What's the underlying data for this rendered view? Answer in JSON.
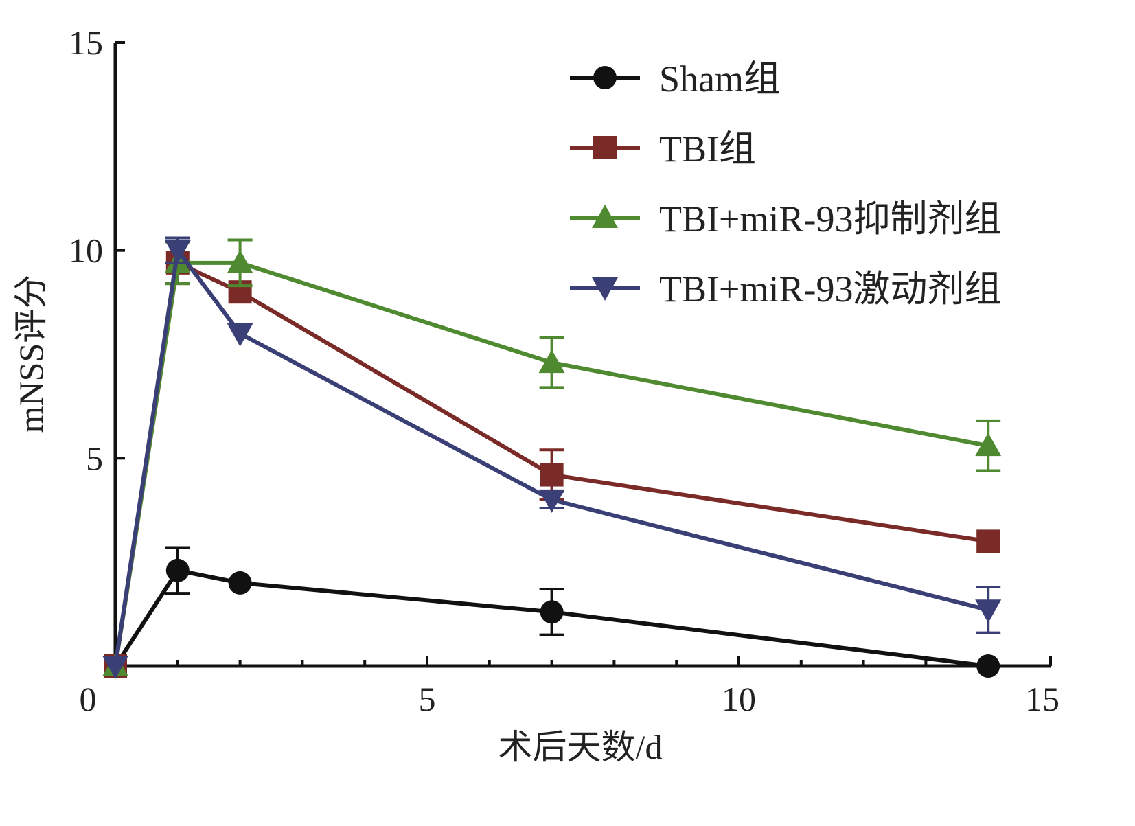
{
  "chart_data": {
    "type": "line",
    "title": "",
    "xlabel": "术后天数/d",
    "ylabel": "mNSS评分",
    "xlim": [
      0,
      15
    ],
    "ylim": [
      0,
      15
    ],
    "xticks": [
      "0",
      "5",
      "10",
      "15"
    ],
    "yticks": [
      "5",
      "10",
      "15"
    ],
    "x": [
      0,
      1,
      2,
      7,
      14
    ],
    "legend_position": "top-right",
    "series": [
      {
        "name": "Sham组",
        "color": "#111111",
        "marker": "circle",
        "values": [
          0,
          2.3,
          2.0,
          1.3,
          0
        ],
        "errors": [
          0,
          0.55,
          0,
          0.55,
          0
        ]
      },
      {
        "name": "TBI组",
        "color": "#7a2a27",
        "marker": "square",
        "values": [
          0,
          9.7,
          9.0,
          4.6,
          3.0
        ],
        "errors": [
          0,
          0.5,
          0,
          0.6,
          0
        ]
      },
      {
        "name": "TBI+miR-93抑制剂组",
        "color": "#4f8a30",
        "marker": "triangle-up",
        "values": [
          0,
          9.7,
          9.7,
          7.3,
          5.3
        ],
        "errors": [
          0,
          0.5,
          0.55,
          0.6,
          0.6
        ]
      },
      {
        "name": "TBI+miR-93激动剂组",
        "color": "#3a3f75",
        "marker": "triangle-down",
        "values": [
          0,
          10.0,
          8.0,
          4.0,
          1.35
        ],
        "errors": [
          0,
          0.3,
          0,
          0.2,
          0.55
        ]
      }
    ]
  }
}
